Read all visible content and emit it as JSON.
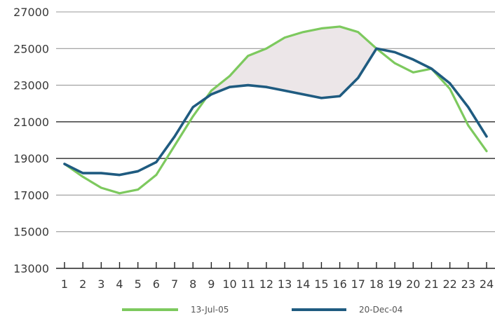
{
  "chart_data": {
    "type": "line",
    "title": "",
    "xlabel": "",
    "ylabel": "",
    "x": [
      1,
      2,
      3,
      4,
      5,
      6,
      7,
      8,
      9,
      10,
      11,
      12,
      13,
      14,
      15,
      16,
      17,
      18,
      19,
      20,
      21,
      22,
      23,
      24
    ],
    "x_tick_labels": [
      "1",
      "2",
      "3",
      "4",
      "5",
      "6",
      "7",
      "8",
      "9",
      "10",
      "11",
      "12",
      "13",
      "14",
      "15",
      "16",
      "17",
      "18",
      "19",
      "20",
      "21",
      "22",
      "23",
      "24"
    ],
    "ylim": [
      13000,
      27000
    ],
    "y_ticks": [
      13000,
      15000,
      17000,
      19000,
      21000,
      23000,
      25000,
      27000
    ],
    "y_tick_labels": [
      "13000",
      "15000",
      "17000",
      "19000",
      "21000",
      "23000",
      "25000",
      "27000"
    ],
    "grid": "horizontal",
    "legend_position": "bottom",
    "shaded_region": {
      "between": [
        "13-Jul-05",
        "20-Dec-04"
      ],
      "x_range": [
        9,
        18
      ],
      "color": "#ece6e8"
    },
    "series": [
      {
        "name": "13-Jul-05",
        "color": "#7dc95e",
        "values": [
          18700,
          18000,
          17400,
          17100,
          17300,
          18100,
          19700,
          21300,
          22700,
          23500,
          24600,
          25000,
          25600,
          25900,
          26100,
          26200,
          25900,
          25000,
          24200,
          23700,
          23900,
          22800,
          20800,
          19400
        ]
      },
      {
        "name": "20-Dec-04",
        "color": "#1f5b80",
        "values": [
          18700,
          18200,
          18200,
          18100,
          18300,
          18800,
          20200,
          21800,
          22500,
          22900,
          23000,
          22900,
          22700,
          22500,
          22300,
          22400,
          23400,
          25000,
          24800,
          24400,
          23900,
          23100,
          21800,
          20200
        ]
      }
    ]
  }
}
